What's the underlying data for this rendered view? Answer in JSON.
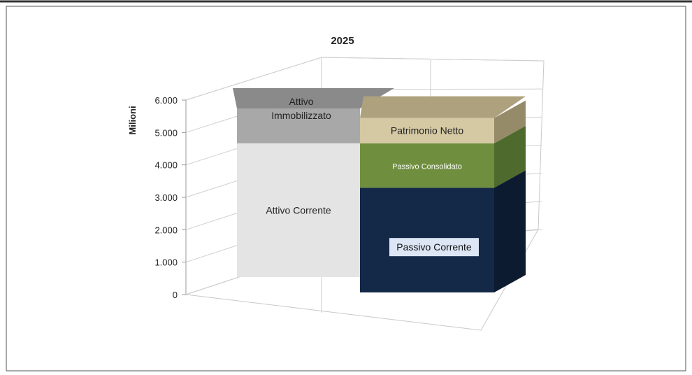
{
  "chart_data": {
    "type": "bar",
    "title": "2025",
    "ylabel": "Milioni",
    "ylim": [
      0,
      6000
    ],
    "yticks": [
      "0",
      "1.000",
      "2.000",
      "3.000",
      "4.000",
      "5.000",
      "6.000"
    ],
    "grid": true,
    "stacked": true,
    "columns": [
      {
        "segments": [
          {
            "name": "Attivo Corrente",
            "value": 4600,
            "front": "#e4e4e4",
            "top": "#d0d0d0",
            "side": "#c8c8c8",
            "label_color": "#222222"
          },
          {
            "name": "Attivo Immobilizzato",
            "value": 1200,
            "front": "#a8a8a8",
            "top": "#8a8a8a",
            "side": "#909090",
            "label_color": "#222222"
          }
        ]
      },
      {
        "segments": [
          {
            "name": "Passivo Corrente",
            "value": 3300,
            "front": "#142848",
            "top": "#0f2038",
            "side": "#0d1b30",
            "label_color": "#111111",
            "label_box": "#dce6f5"
          },
          {
            "name": "Passivo Consolidato",
            "value": 1400,
            "front": "#6f8f3f",
            "top": "#5b7a34",
            "side": "#4e6a2c",
            "label_color": "#ffffff"
          },
          {
            "name": "Patrimonio Netto",
            "value": 800,
            "front": "#d5c9a4",
            "top": "#aea27e",
            "side": "#968b69",
            "label_color": "#222222"
          }
        ]
      }
    ]
  }
}
